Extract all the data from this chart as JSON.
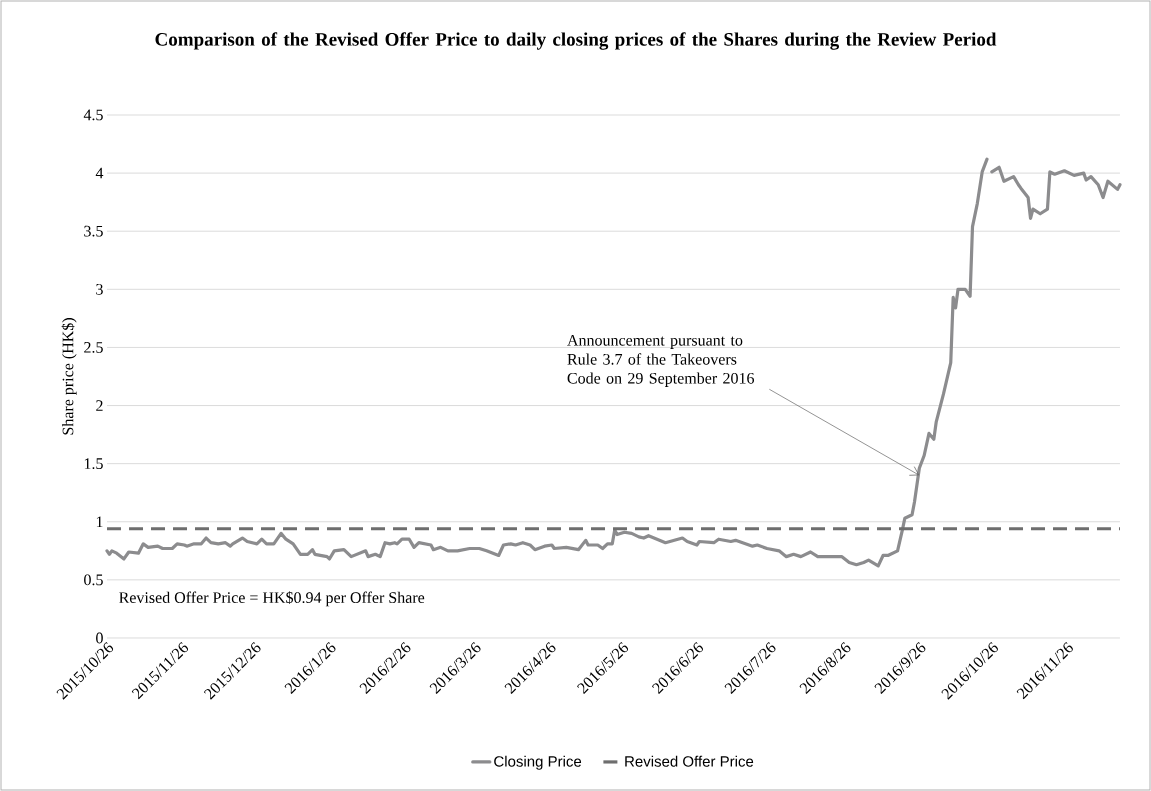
{
  "chart_data": {
    "type": "line",
    "title": "Comparison of the Revised Offer Price to daily closing prices of the Shares during the Review Period",
    "ylabel": "Share price (HK$)",
    "x": [
      "2015-10-26",
      "2015-10-27",
      "2015-10-28",
      "2015-10-30",
      "2015-11-02",
      "2015-11-04",
      "2015-11-08",
      "2015-11-10",
      "2015-11-12",
      "2015-11-16",
      "2015-11-18",
      "2015-11-22",
      "2015-11-24",
      "2015-11-27",
      "2015-11-28",
      "2015-12-01",
      "2015-12-04",
      "2015-12-06",
      "2015-12-08",
      "2015-12-11",
      "2015-12-14",
      "2015-12-16",
      "2015-12-17",
      "2015-12-21",
      "2015-12-23",
      "2015-12-27",
      "2015-12-29",
      "2015-12-31",
      "2016-01-03",
      "2016-01-06",
      "2016-01-08",
      "2016-01-11",
      "2016-01-14",
      "2016-01-17",
      "2016-01-19",
      "2016-01-20",
      "2016-01-25",
      "2016-01-26",
      "2016-01-28",
      "2016-02-01",
      "2016-02-04",
      "2016-02-10",
      "2016-02-11",
      "2016-02-14",
      "2016-02-16",
      "2016-02-18",
      "2016-02-20",
      "2016-02-22",
      "2016-02-23",
      "2016-02-25",
      "2016-02-28",
      "2016-03-01",
      "2016-03-03",
      "2016-03-08",
      "2016-03-09",
      "2016-03-12",
      "2016-03-15",
      "2016-03-19",
      "2016-03-24",
      "2016-03-28",
      "2016-03-31",
      "2016-04-05",
      "2016-04-07",
      "2016-04-10",
      "2016-04-12",
      "2016-04-15",
      "2016-04-18",
      "2016-04-20",
      "2016-04-24",
      "2016-04-27",
      "2016-04-28",
      "2016-05-03",
      "2016-05-08",
      "2016-05-11",
      "2016-05-12",
      "2016-05-16",
      "2016-05-18",
      "2016-05-20",
      "2016-05-22",
      "2016-05-23",
      "2016-05-24",
      "2016-05-27",
      "2016-05-30",
      "2016-06-02",
      "2016-06-04",
      "2016-06-06",
      "2016-06-13",
      "2016-06-20",
      "2016-06-22",
      "2016-06-26",
      "2016-06-27",
      "2016-07-03",
      "2016-07-05",
      "2016-07-10",
      "2016-07-12",
      "2016-07-19",
      "2016-07-21",
      "2016-07-25",
      "2016-07-30",
      "2016-08-02",
      "2016-08-05",
      "2016-08-08",
      "2016-08-12",
      "2016-08-15",
      "2016-08-20",
      "2016-08-25",
      "2016-08-28",
      "2016-08-31",
      "2016-09-03",
      "2016-09-05",
      "2016-09-09",
      "2016-09-11",
      "2016-09-13",
      "2016-09-17",
      "2016-09-19",
      "2016-09-20",
      "2016-09-23",
      "2016-09-24",
      "2016-09-26",
      "2016-09-28",
      "2016-09-30",
      "2016-10-02",
      "2016-10-03",
      "2016-10-06",
      "2016-10-09",
      "2016-10-10",
      "2016-10-11",
      "2016-10-12",
      "2016-10-15",
      "2016-10-17",
      "2016-10-18",
      "2016-10-20",
      "2016-10-22",
      "2016-10-24",
      "2016-10-25",
      "2016-10-26",
      "2016-10-29",
      "2016-10-31",
      "2016-11-04",
      "2016-11-06",
      "2016-11-07",
      "2016-11-10",
      "2016-11-11",
      "2016-11-12",
      "2016-11-15",
      "2016-11-18",
      "2016-11-19",
      "2016-11-21",
      "2016-11-25",
      "2016-11-29",
      "2016-12-03",
      "2016-12-04",
      "2016-12-06",
      "2016-12-09",
      "2016-12-11",
      "2016-12-13",
      "2016-12-17",
      "2016-12-18"
    ],
    "series": [
      {
        "name": "Closing Price",
        "color": "#8c8c8e",
        "values": [
          0.75,
          0.72,
          0.75,
          0.73,
          0.68,
          0.74,
          0.73,
          0.81,
          0.78,
          0.79,
          0.77,
          0.77,
          0.81,
          0.8,
          0.79,
          0.81,
          0.81,
          0.86,
          0.82,
          0.81,
          0.82,
          0.79,
          0.81,
          0.86,
          0.83,
          0.81,
          0.85,
          0.81,
          0.81,
          0.9,
          0.85,
          0.81,
          0.72,
          0.72,
          0.76,
          0.72,
          0.7,
          0.68,
          0.75,
          0.76,
          0.7,
          0.75,
          0.7,
          0.72,
          0.7,
          0.82,
          0.81,
          0.82,
          0.81,
          0.85,
          0.85,
          0.78,
          0.82,
          0.8,
          0.76,
          0.78,
          0.75,
          0.75,
          0.77,
          0.77,
          0.75,
          0.71,
          0.8,
          0.81,
          0.8,
          0.82,
          0.8,
          0.76,
          0.79,
          0.8,
          0.77,
          0.78,
          0.76,
          0.84,
          0.8,
          0.8,
          0.77,
          0.81,
          0.81,
          0.93,
          0.89,
          0.91,
          0.9,
          0.87,
          0.86,
          0.88,
          0.82,
          0.86,
          0.83,
          0.8,
          0.83,
          0.82,
          0.85,
          0.83,
          0.84,
          0.79,
          0.8,
          0.77,
          0.75,
          0.7,
          0.72,
          0.7,
          0.74,
          0.7,
          0.7,
          0.7,
          0.65,
          0.63,
          0.65,
          0.67,
          0.62,
          0.71,
          0.71,
          0.75,
          0.93,
          1.03,
          1.06,
          1.17,
          1.46,
          1.57,
          1.76,
          1.71,
          1.86,
          2.1,
          2.37,
          2.93,
          2.84,
          3.0,
          3.0,
          2.94,
          3.54,
          3.74,
          4.01,
          4.12,
          null,
          4.01,
          4.05,
          3.93,
          3.97,
          3.9,
          3.87,
          3.79,
          3.61,
          3.69,
          3.65,
          3.69,
          4.01,
          3.99,
          4.02,
          3.98,
          4.0,
          3.94,
          3.97,
          3.9,
          3.79,
          3.93,
          3.86,
          3.9
        ]
      }
    ],
    "line_style": "solid",
    "ref_lines": [
      {
        "axis": "y",
        "value": 0.94,
        "label": "Revised Offer Price",
        "color": "#6e6e6e",
        "line_style": "dashed"
      }
    ],
    "annotations": [
      {
        "text": "Announcement pursuant to Rule 3.7 of the Takeovers Code on 29 September 2016",
        "x": "2016-09-26",
        "y": 1.4
      },
      "Revised Offer Price = HK$0.94 per Offer Share"
    ],
    "xlim": [
      "2015-10-26",
      "2016-12-18"
    ],
    "xticks": [
      {
        "value": "2015-10-26",
        "label": "2015/10/26"
      },
      {
        "value": "2015-11-26",
        "label": "2015/11/26"
      },
      {
        "value": "2015-12-26",
        "label": "2015/12/26"
      },
      {
        "value": "2016-01-26",
        "label": "2016/1/26"
      },
      {
        "value": "2016-02-26",
        "label": "2016/2/26"
      },
      {
        "value": "2016-03-26",
        "label": "2016/3/26"
      },
      {
        "value": "2016-04-26",
        "label": "2016/4/26"
      },
      {
        "value": "2016-05-26",
        "label": "2016/5/26"
      },
      {
        "value": "2016-06-26",
        "label": "2016/6/26"
      },
      {
        "value": "2016-07-26",
        "label": "2016/7/26"
      },
      {
        "value": "2016-08-26",
        "label": "2016/8/26"
      },
      {
        "value": "2016-09-26",
        "label": "2016/9/26"
      },
      {
        "value": "2016-10-26",
        "label": "2016/10/26"
      },
      {
        "value": "2016-11-26",
        "label": "2016/11/26"
      }
    ],
    "ylim": [
      0,
      4.5
    ],
    "yticks": [
      0,
      0.5,
      1,
      1.5,
      2,
      2.5,
      3,
      3.5,
      4,
      4.5
    ],
    "grid": "y",
    "legend": "bottom"
  }
}
